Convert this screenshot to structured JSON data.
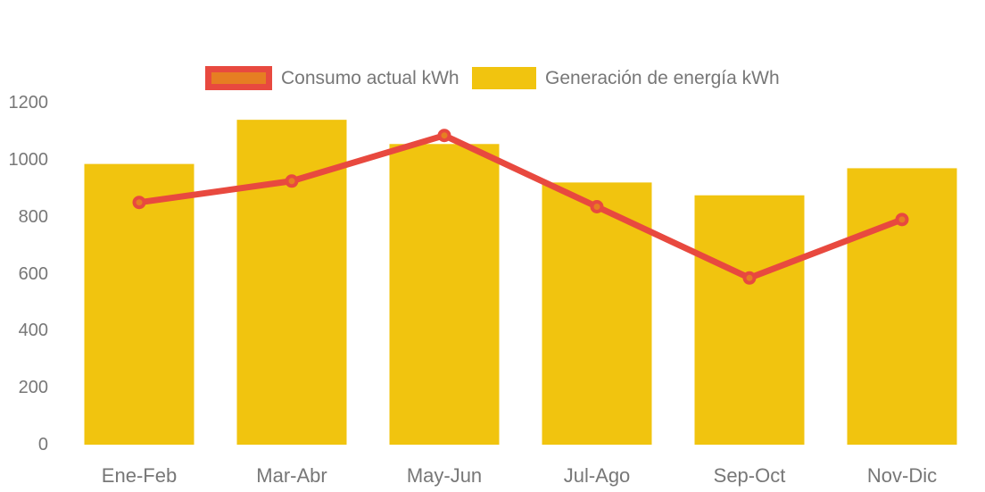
{
  "chart_data": {
    "type": "bar",
    "subtype": "bar-line-combo",
    "categories": [
      "Ene-Feb",
      "Mar-Abr",
      "May-Jun",
      "Jul-Ago",
      "Sep-Oct",
      "Nov-Dic"
    ],
    "series": [
      {
        "name": "Consumo actual kWh",
        "type": "line",
        "values": [
          850,
          925,
          1085,
          835,
          585,
          790
        ],
        "color": "#E8493F",
        "marker_fill": "#E67E22"
      },
      {
        "name": "Generación de energía kWh",
        "type": "bar",
        "values": [
          985,
          1140,
          1055,
          920,
          875,
          970
        ],
        "color": "#F1C40F"
      }
    ],
    "ylim": [
      0,
      1200
    ],
    "yticks": [
      0,
      200,
      400,
      600,
      800,
      1000,
      1200
    ],
    "grid": false,
    "legend_position": "top",
    "axis_text_color": "#777777"
  }
}
